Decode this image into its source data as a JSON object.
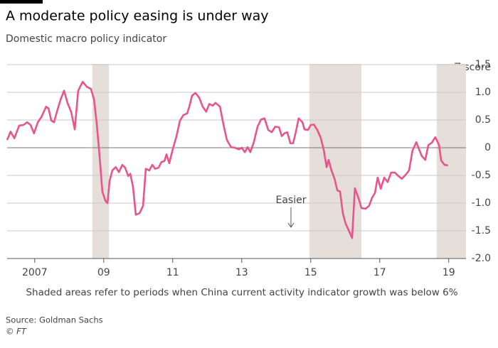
{
  "chart_data": {
    "type": "line",
    "title": "A moderate policy easing is under way",
    "subtitle": "Domestic macro policy indicator",
    "y_axis_label": "Z score",
    "annotation": "Easier",
    "note": "Shaded areas refer to periods when China current activity indicator growth was below 6%",
    "source": "Source: Goldman Sachs",
    "credit": "© FT",
    "xlim": [
      2006.2,
      2019.5
    ],
    "xticks": [
      2007,
      {
        "value": 2009,
        "label": "09"
      },
      {
        "value": 2011,
        "label": "11"
      },
      {
        "value": 2013,
        "label": "13"
      },
      {
        "value": 2015,
        "label": "15"
      },
      {
        "value": 2017,
        "label": "17"
      },
      {
        "value": 2019,
        "label": "19"
      }
    ],
    "ylim": [
      -2,
      1.5
    ],
    "yticks": [
      1.5,
      {
        "value": 1,
        "label": "1.0"
      },
      0.5,
      0,
      -0.5,
      {
        "value": -1,
        "label": "-1.0"
      },
      -1.5,
      {
        "value": -2,
        "label": "-2.0"
      }
    ],
    "grid": true,
    "shade_color": "#e6ded8",
    "shaded_periods": [
      [
        2008.67,
        2009.15
      ],
      [
        2014.96,
        2016.47
      ],
      [
        2018.65,
        2019.5
      ]
    ],
    "series": [
      {
        "color": "#e8548c",
        "x": [
          2006.2,
          2006.3,
          2006.41,
          2006.55,
          2006.67,
          2006.78,
          2006.88,
          2006.98,
          2007.09,
          2007.19,
          2007.33,
          2007.4,
          2007.48,
          2007.56,
          2007.64,
          2007.75,
          2007.85,
          2007.95,
          2008.06,
          2008.16,
          2008.26,
          2008.39,
          2008.51,
          2008.63,
          2008.72,
          2008.8,
          2008.88,
          2008.96,
          2009.05,
          2009.11,
          2009.17,
          2009.25,
          2009.35,
          2009.44,
          2009.54,
          2009.62,
          2009.71,
          2009.77,
          2009.85,
          2009.93,
          2010.04,
          2010.14,
          2010.22,
          2010.32,
          2010.41,
          2010.49,
          2010.59,
          2010.67,
          2010.76,
          2010.82,
          2010.9,
          2011.0,
          2011.11,
          2011.21,
          2011.31,
          2011.42,
          2011.48,
          2011.56,
          2011.66,
          2011.77,
          2011.87,
          2011.97,
          2012.06,
          2012.16,
          2012.24,
          2012.37,
          2012.47,
          2012.57,
          2012.69,
          2012.8,
          2012.92,
          2013.0,
          2013.09,
          2013.17,
          2013.25,
          2013.35,
          2013.46,
          2013.56,
          2013.66,
          2013.77,
          2013.87,
          2013.97,
          2014.08,
          2014.16,
          2014.24,
          2014.32,
          2014.41,
          2014.49,
          2014.57,
          2014.65,
          2014.76,
          2014.82,
          2014.92,
          2015.0,
          2015.09,
          2015.19,
          2015.29,
          2015.38,
          2015.46,
          2015.52,
          2015.6,
          2015.69,
          2015.77,
          2015.85,
          2015.93,
          2016.01,
          2016.1,
          2016.2,
          2016.28,
          2016.39,
          2016.47,
          2016.59,
          2016.69,
          2016.78,
          2016.86,
          2016.94,
          2017.03,
          2017.13,
          2017.23,
          2017.33,
          2017.44,
          2017.54,
          2017.64,
          2017.75,
          2017.85,
          2017.95,
          2018.06,
          2018.14,
          2018.22,
          2018.32,
          2018.41,
          2018.51,
          2018.61,
          2018.72,
          2018.78,
          2018.88,
          2018.98
        ],
        "values": [
          0.14,
          0.29,
          0.17,
          0.4,
          0.41,
          0.46,
          0.41,
          0.26,
          0.46,
          0.55,
          0.74,
          0.71,
          0.49,
          0.46,
          0.64,
          0.87,
          1.03,
          0.81,
          0.64,
          0.33,
          1.03,
          1.19,
          1.1,
          1.06,
          0.87,
          0.42,
          -0.15,
          -0.79,
          -0.96,
          -1.0,
          -0.6,
          -0.41,
          -0.35,
          -0.44,
          -0.31,
          -0.36,
          -0.51,
          -0.47,
          -0.71,
          -1.21,
          -1.18,
          -1.05,
          -0.38,
          -0.41,
          -0.31,
          -0.38,
          -0.36,
          -0.26,
          -0.24,
          -0.12,
          -0.28,
          -0.03,
          0.21,
          0.49,
          0.59,
          0.62,
          0.74,
          0.94,
          0.99,
          0.9,
          0.74,
          0.65,
          0.79,
          0.76,
          0.81,
          0.74,
          0.42,
          0.14,
          0.01,
          0,
          -0.03,
          0,
          -0.08,
          0.01,
          -0.08,
          0.1,
          0.38,
          0.51,
          0.53,
          0.32,
          0.28,
          0.38,
          0.37,
          0.21,
          0.26,
          0.28,
          0.08,
          0.08,
          0.29,
          0.53,
          0.46,
          0.33,
          0.32,
          0.41,
          0.42,
          0.32,
          0.18,
          -0.05,
          -0.35,
          -0.22,
          -0.41,
          -0.56,
          -0.77,
          -0.79,
          -1.18,
          -1.37,
          -1.49,
          -1.63,
          -0.73,
          -0.92,
          -1.09,
          -1.1,
          -1.05,
          -0.9,
          -0.82,
          -0.54,
          -0.74,
          -0.54,
          -0.62,
          -0.45,
          -0.45,
          -0.51,
          -0.56,
          -0.49,
          -0.41,
          -0.05,
          0.1,
          -0.03,
          -0.15,
          -0.22,
          0.05,
          0.09,
          0.19,
          0.05,
          -0.23,
          -0.31,
          -0.32
        ]
      }
    ]
  }
}
